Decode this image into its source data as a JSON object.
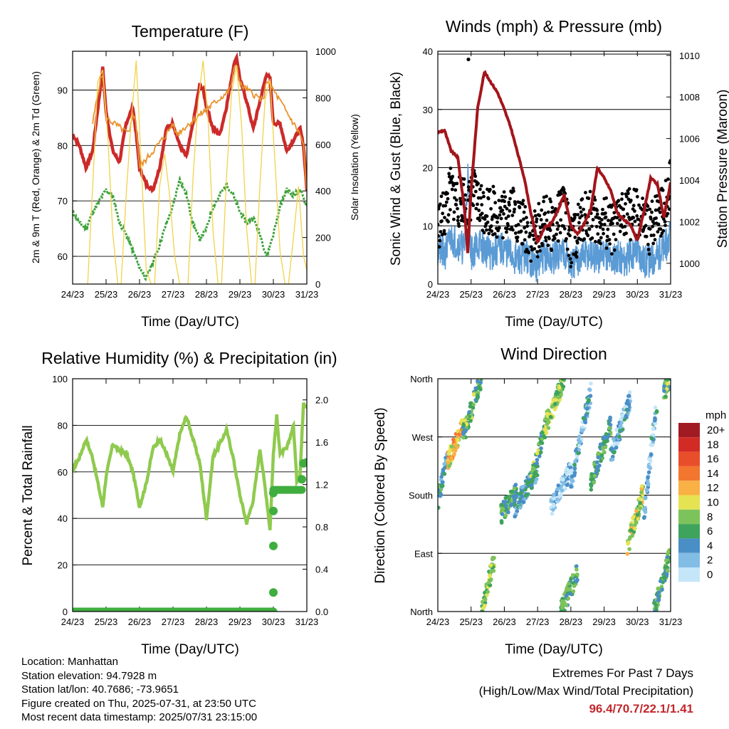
{
  "panels": {
    "temperature": {
      "title": "Temperature (F)",
      "ylabel_left": "2m & 9m T (Red, Orange) & 2m Td (Green)",
      "ylabel_right": "Solar Insolation (Yellow)",
      "xlabel": "Time (Day/UTC)"
    },
    "winds": {
      "title": "Winds (mph) & Pressure (mb)",
      "ylabel_left": "Sonic Wind & Gust (Blue, Black)",
      "ylabel_right": "Station Pressure (Maroon)",
      "xlabel": "Time (Day/UTC)"
    },
    "humidity": {
      "title": "Relative Humidity (%) & Precipitation (in)",
      "ylabel_left": "Percent & Total Rainfall",
      "xlabel": "Time (Day/UTC)"
    },
    "wind_direction": {
      "title": "Wind Direction",
      "ylabel_left": "Direction (Colored By Speed)",
      "xlabel": "Time (Day/UTC)",
      "colorbar_unit": "mph",
      "colorbar_labels": [
        "20+",
        "18",
        "16",
        "14",
        "12",
        "10",
        "8",
        "6",
        "4",
        "2",
        "0"
      ],
      "colorbar_colors": [
        "#a01c22",
        "#d22b26",
        "#e94e2a",
        "#f3762f",
        "#f9b044",
        "#e6e352",
        "#7dc35b",
        "#3ea35c",
        "#4a8ec6",
        "#82bde6",
        "#c4e6f8"
      ]
    }
  },
  "info": {
    "location": "Location: Manhattan",
    "elevation": "Station elevation: 94.7928 m",
    "latlon": "Station lat/lon: 40.7686; -73.9651",
    "created": "Figure created on Thu, 2025-07-31, at 23:50 UTC",
    "recent": "Most recent data timestamp: 2025/07/31 23:15:00"
  },
  "extremes": {
    "title": "Extremes For Past 7 Days",
    "subtitle": "(High/Low/Max Wind/Total Precipitation)",
    "values": "96.4/70.7/22.1/1.41"
  },
  "chart_data": [
    {
      "type": "line",
      "id": "temperature",
      "x_ticks": [
        "24/23",
        "25/23",
        "26/23",
        "27/23",
        "28/23",
        "29/23",
        "30/23",
        "31/23"
      ],
      "xlim": [
        0,
        7
      ],
      "ylim": [
        55,
        97
      ],
      "yticks": [
        60,
        70,
        80,
        90
      ],
      "y2lim": [
        0,
        1000
      ],
      "y2ticks": [
        0,
        200,
        400,
        600,
        800,
        1000
      ],
      "series": [
        {
          "color": "#cc2a2a",
          "axis": "left",
          "x": [
            0,
            0.2,
            0.4,
            0.6,
            0.8,
            0.9,
            1.0,
            1.2,
            1.4,
            1.6,
            1.8,
            1.9,
            2.0,
            2.2,
            2.4,
            2.6,
            2.8,
            3.0,
            3.2,
            3.4,
            3.6,
            3.8,
            3.9,
            4.0,
            4.2,
            4.4,
            4.6,
            4.8,
            4.9,
            5.0,
            5.2,
            5.4,
            5.6,
            5.8,
            5.9,
            6.0,
            6.2,
            6.4,
            6.6,
            6.8,
            6.9,
            7.0
          ],
          "y": [
            82,
            80,
            76,
            79,
            89,
            94,
            86,
            79,
            77,
            84,
            87,
            82,
            76,
            73,
            72,
            76,
            83,
            84,
            80,
            78,
            84,
            91,
            90,
            87,
            83,
            82,
            87,
            94,
            96,
            92,
            88,
            83,
            88,
            93,
            92,
            84,
            84,
            79,
            81,
            83,
            80,
            72
          ]
        },
        {
          "color": "#e8922c",
          "axis": "left",
          "x": [
            0.6,
            0.8,
            0.9,
            1.0,
            1.7,
            1.8,
            1.9,
            2.0,
            2.8,
            3.0,
            3.1,
            4.7,
            4.8,
            4.9,
            5.0,
            5.7,
            5.8,
            5.9,
            6.8,
            6.9,
            7.0
          ],
          "y": [
            84,
            91,
            93,
            85,
            82,
            86,
            84,
            76,
            82,
            84,
            82,
            90,
            93,
            95,
            91,
            88,
            92,
            91,
            82,
            80,
            71
          ]
        },
        {
          "color": "#3ea33a",
          "axis": "left",
          "x": [
            0,
            0.2,
            0.4,
            0.6,
            0.8,
            1.0,
            1.2,
            1.4,
            1.6,
            1.8,
            2.0,
            2.2,
            2.4,
            2.6,
            2.8,
            3.0,
            3.2,
            3.4,
            3.6,
            3.8,
            4.0,
            4.2,
            4.4,
            4.6,
            4.8,
            5.0,
            5.2,
            5.4,
            5.6,
            5.8,
            6.0,
            6.2,
            6.4,
            6.6,
            6.8,
            7.0
          ],
          "y": [
            68,
            66,
            65,
            68,
            70,
            72,
            71,
            66,
            64,
            61,
            58,
            56,
            59,
            62,
            66,
            69,
            74,
            71,
            66,
            63,
            65,
            69,
            71,
            73,
            71,
            68,
            66,
            67,
            64,
            60,
            64,
            69,
            72,
            71,
            72,
            69
          ]
        },
        {
          "color": "#f2d24a",
          "axis": "right",
          "x": [
            0.45,
            0.6,
            0.75,
            0.9,
            1.05,
            1.2,
            1.35,
            1.45,
            1.6,
            1.75,
            1.9,
            2.05,
            2.2,
            2.35,
            2.45,
            2.6,
            2.75,
            2.9,
            3.05,
            3.2,
            3.35,
            3.45,
            3.6,
            3.75,
            3.9,
            4.05,
            4.2,
            4.35,
            4.45,
            4.6,
            4.75,
            4.9,
            5.05,
            5.2,
            5.35,
            5.45,
            5.6,
            5.75,
            5.9,
            6.05,
            6.2,
            6.35,
            6.45,
            6.6,
            6.75,
            6.9,
            7.0
          ],
          "y": [
            0,
            420,
            870,
            920,
            640,
            220,
            0,
            0,
            380,
            700,
            960,
            520,
            60,
            0,
            0,
            420,
            560,
            380,
            120,
            0,
            0,
            0,
            460,
            780,
            960,
            700,
            220,
            0,
            0,
            460,
            820,
            940,
            680,
            240,
            0,
            0,
            430,
            790,
            880,
            520,
            140,
            0,
            0,
            200,
            420,
            120,
            60
          ]
        }
      ]
    },
    {
      "type": "line",
      "id": "winds",
      "x_ticks": [
        "24/23",
        "25/23",
        "26/23",
        "27/23",
        "28/23",
        "29/23",
        "30/23",
        "31/23"
      ],
      "xlim": [
        0,
        7
      ],
      "ylim": [
        0,
        40
      ],
      "yticks": [
        0,
        10,
        20,
        30,
        40
      ],
      "y2lim": [
        999.0,
        1010.2
      ],
      "y2ticks": [
        1000,
        1002,
        1004,
        1006,
        1008,
        1010
      ],
      "series": [
        {
          "color": "#000000",
          "axis": "left",
          "style": "gust-points",
          "x": [
            0,
            0.2,
            0.4,
            0.6,
            0.8,
            0.9,
            1.0,
            1.2,
            1.4,
            1.6,
            1.8,
            2.0,
            2.2,
            2.4,
            2.6,
            2.8,
            3.0,
            3.2,
            3.4,
            3.6,
            3.8,
            4.0,
            4.2,
            4.4,
            4.6,
            4.8,
            5.0,
            5.2,
            5.4,
            5.6,
            5.8,
            6.0,
            6.2,
            6.4,
            6.6,
            6.8,
            7.0
          ],
          "y": [
            10,
            12,
            16,
            14,
            15,
            12,
            16,
            14,
            13,
            13,
            12,
            12,
            14,
            11,
            10,
            8,
            9,
            11,
            10,
            11,
            13,
            7,
            9,
            12,
            12,
            10,
            11,
            9,
            10,
            13,
            12,
            12,
            10,
            9,
            13,
            12,
            18
          ]
        },
        {
          "color": "#5b9bd5",
          "axis": "left",
          "style": "wind",
          "x": [
            0,
            0.2,
            0.4,
            0.6,
            0.8,
            0.9,
            1.0,
            1.2,
            1.4,
            1.6,
            1.8,
            2.0,
            2.2,
            2.4,
            2.6,
            2.8,
            3.0,
            3.2,
            3.4,
            3.6,
            3.8,
            4.0,
            4.2,
            4.4,
            4.6,
            4.8,
            5.0,
            5.2,
            5.4,
            5.6,
            5.8,
            6.0,
            6.2,
            6.4,
            6.6,
            6.8,
            7.0
          ],
          "y": [
            6,
            5,
            8,
            7,
            6,
            19,
            5,
            7,
            6,
            5,
            6,
            6,
            5,
            4,
            5,
            4,
            3,
            5,
            4,
            5,
            6,
            3,
            4,
            5,
            5,
            4,
            6,
            4,
            5,
            4,
            5,
            6,
            4,
            4,
            5,
            6,
            8
          ]
        },
        {
          "color": "#a3151b",
          "axis": "right",
          "style": "pressure",
          "x": [
            0,
            0.2,
            0.4,
            0.6,
            0.8,
            0.9,
            1.0,
            1.2,
            1.4,
            1.6,
            1.8,
            2.0,
            2.2,
            2.4,
            2.6,
            2.8,
            3.0,
            3.2,
            3.4,
            3.6,
            3.8,
            4.0,
            4.2,
            4.4,
            4.6,
            4.8,
            5.0,
            5.2,
            5.4,
            5.6,
            5.8,
            6.0,
            6.2,
            6.4,
            6.6,
            6.8,
            7.0
          ],
          "y": [
            1006.3,
            1006.4,
            1005.4,
            1005.1,
            1002.6,
            1000.5,
            1003.5,
            1007.5,
            1009.2,
            1008.7,
            1008.2,
            1007.4,
            1006.5,
            1005.3,
            1004.1,
            1002.4,
            1001.0,
            1001.7,
            1001.9,
            1002.5,
            1003.3,
            1001.8,
            1001.4,
            1001.9,
            1002.6,
            1004.6,
            1004.1,
            1003.5,
            1002.4,
            1002.1,
            1001.8,
            1001.1,
            1002.5,
            1004.1,
            1003.8,
            1002.2,
            1003.9
          ]
        }
      ]
    },
    {
      "type": "line",
      "id": "humidity",
      "x_ticks": [
        "24/23",
        "25/23",
        "26/23",
        "27/23",
        "28/23",
        "29/23",
        "30/23",
        "31/23"
      ],
      "xlim": [
        0,
        7
      ],
      "ylim": [
        0,
        100
      ],
      "yticks": [
        0,
        20,
        40,
        60,
        80,
        100
      ],
      "y2lim": [
        0,
        2.2
      ],
      "y2ticks": [
        0.0,
        0.4,
        0.8,
        1.2,
        1.6,
        2.0
      ],
      "series": [
        {
          "color": "#8fca4e",
          "axis": "left",
          "style": "rh",
          "x": [
            0,
            0.2,
            0.4,
            0.6,
            0.8,
            0.9,
            1.0,
            1.2,
            1.4,
            1.6,
            1.8,
            2.0,
            2.2,
            2.4,
            2.6,
            2.8,
            3.0,
            3.2,
            3.4,
            3.6,
            3.8,
            3.9,
            4.0,
            4.2,
            4.4,
            4.6,
            4.8,
            5.0,
            5.2,
            5.4,
            5.6,
            5.8,
            5.9,
            6.0,
            6.1,
            6.2,
            6.4,
            6.6,
            6.7,
            6.8,
            6.9,
            7.0
          ],
          "y": [
            61,
            66,
            74,
            66,
            52,
            45,
            58,
            72,
            69,
            68,
            60,
            45,
            55,
            70,
            74,
            68,
            60,
            76,
            84,
            74,
            64,
            52,
            40,
            67,
            72,
            78,
            66,
            50,
            38,
            48,
            70,
            48,
            35,
            68,
            84,
            68,
            70,
            80,
            56,
            59,
            90,
            88
          ]
        },
        {
          "color": "#3fae3f",
          "axis": "right",
          "style": "precip",
          "x": [
            0,
            1,
            2,
            3,
            4,
            5,
            5.9,
            6.0,
            6.02,
            6.04,
            6.06,
            6.08,
            6.1,
            6.3,
            6.5,
            6.7,
            6.8,
            6.9,
            7.0
          ],
          "y": [
            0,
            0,
            0,
            0,
            0,
            0,
            0,
            0.0,
            0.2,
            0.6,
            0.95,
            1.12,
            1.15,
            1.15,
            1.15,
            1.15,
            1.25,
            1.4,
            1.41
          ]
        }
      ]
    },
    {
      "type": "scatter",
      "id": "wind_direction",
      "x_ticks": [
        "24/23",
        "25/23",
        "26/23",
        "27/23",
        "28/23",
        "29/23",
        "30/23",
        "31/23"
      ],
      "xlim": [
        0,
        7
      ],
      "ylim": [
        0,
        360
      ],
      "yticks": [
        0,
        90,
        180,
        270,
        360
      ],
      "ytick_labels": [
        "North",
        "East",
        "South",
        "West",
        "North"
      ],
      "clusters": [
        {
          "x0": 0.0,
          "x1": 0.3,
          "d0": 170,
          "d1": 240,
          "spd": 5
        },
        {
          "x0": 0.3,
          "x1": 0.75,
          "d0": 230,
          "d1": 290,
          "spd": 11
        },
        {
          "x0": 0.75,
          "x1": 1.3,
          "d0": 270,
          "d1": 360,
          "spd": 7
        },
        {
          "x0": 1.3,
          "x1": 1.7,
          "d0": 0,
          "d1": 80,
          "spd": 8
        },
        {
          "x0": 1.9,
          "x1": 2.4,
          "d0": 150,
          "d1": 190,
          "spd": 6
        },
        {
          "x0": 2.3,
          "x1": 3.0,
          "d0": 160,
          "d1": 220,
          "spd": 4
        },
        {
          "x0": 2.8,
          "x1": 3.3,
          "d0": 200,
          "d1": 300,
          "spd": 7
        },
        {
          "x0": 3.2,
          "x1": 3.8,
          "d0": 280,
          "d1": 360,
          "spd": 8
        },
        {
          "x0": 3.4,
          "x1": 4.0,
          "d0": 160,
          "d1": 220,
          "spd": 2
        },
        {
          "x0": 3.7,
          "x1": 4.2,
          "d0": 0,
          "d1": 60,
          "spd": 6
        },
        {
          "x0": 4.0,
          "x1": 4.6,
          "d0": 200,
          "d1": 340,
          "spd": 3
        },
        {
          "x0": 4.6,
          "x1": 5.2,
          "d0": 200,
          "d1": 290,
          "spd": 6
        },
        {
          "x0": 5.2,
          "x1": 5.8,
          "d0": 240,
          "d1": 330,
          "spd": 3
        },
        {
          "x0": 5.7,
          "x1": 6.2,
          "d0": 100,
          "d1": 190,
          "spd": 9
        },
        {
          "x0": 6.2,
          "x1": 6.6,
          "d0": 150,
          "d1": 330,
          "spd": 3
        },
        {
          "x0": 6.5,
          "x1": 7.0,
          "d0": 0,
          "d1": 90,
          "spd": 6
        },
        {
          "x0": 6.8,
          "x1": 7.0,
          "d0": 340,
          "d1": 360,
          "spd": 7
        }
      ]
    }
  ]
}
